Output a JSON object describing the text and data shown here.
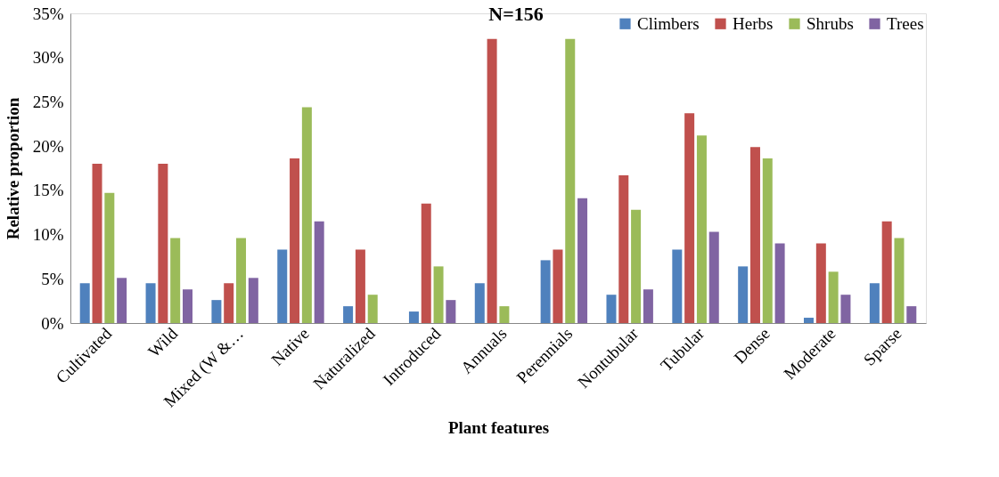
{
  "chart_data": {
    "type": "bar",
    "title": "N=156",
    "xlabel": "Plant features",
    "ylabel": "Relative proportion",
    "categories": [
      "Cultivated",
      "Wild",
      "Mixed (W &…",
      "Native",
      "Naturalized",
      "Introduced",
      "Annuals",
      "Perennials",
      "Nontubular",
      "Tubular",
      "Dense",
      "Moderate",
      "Sparse"
    ],
    "series": [
      {
        "name": "Climbers",
        "color": "#4f81bd",
        "values": [
          4.5,
          4.5,
          2.6,
          8.3,
          1.9,
          1.3,
          4.5,
          7.1,
          3.2,
          8.3,
          6.4,
          0.6,
          4.5
        ]
      },
      {
        "name": "Herbs",
        "color": "#c0504d",
        "values": [
          18.0,
          18.0,
          4.5,
          18.6,
          8.3,
          13.5,
          32.1,
          8.3,
          16.7,
          23.7,
          19.9,
          9.0,
          11.5
        ]
      },
      {
        "name": "Shrubs",
        "color": "#9bbb59",
        "values": [
          14.7,
          9.6,
          9.6,
          24.4,
          3.2,
          6.4,
          1.9,
          32.1,
          12.8,
          21.2,
          18.6,
          5.8,
          9.6
        ]
      },
      {
        "name": "Trees",
        "color": "#8064a2",
        "values": [
          5.1,
          3.8,
          5.1,
          11.5,
          0,
          2.6,
          0,
          14.1,
          3.8,
          10.3,
          9.0,
          3.2,
          1.9
        ]
      }
    ],
    "ylim": [
      0,
      35
    ],
    "yticks": [
      {
        "value": 0,
        "label": "0%"
      },
      {
        "value": 5,
        "label": "5%"
      },
      {
        "value": 10,
        "label": "10%"
      },
      {
        "value": 15,
        "label": "15%"
      },
      {
        "value": 20,
        "label": "20%"
      },
      {
        "value": 25,
        "label": "25%"
      },
      {
        "value": 30,
        "label": "30%"
      },
      {
        "value": 35,
        "label": "35%"
      }
    ],
    "grid": false,
    "legend": "top right"
  }
}
